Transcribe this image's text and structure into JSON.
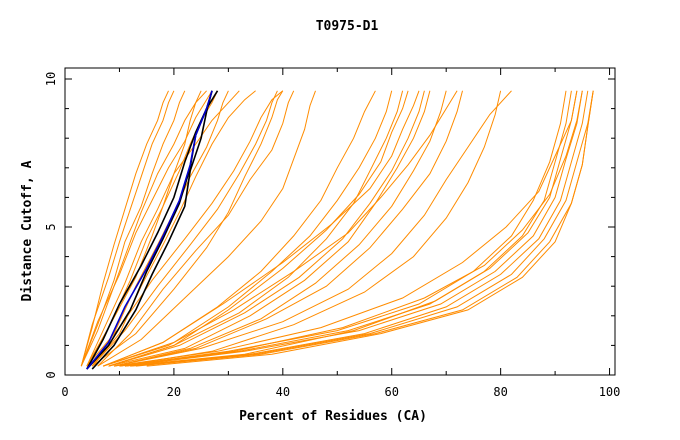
{
  "chart_data": {
    "type": "line",
    "title": "T0975-D1",
    "xlabel": "Percent of Residues (CA)",
    "ylabel": "Distance Cutoff, A",
    "xlim": [
      0,
      101
    ],
    "ylim": [
      0,
      10
    ],
    "x_ticks": [
      0,
      20,
      40,
      60,
      80,
      100
    ],
    "y_ticks": [
      0,
      5,
      10
    ],
    "grid": false,
    "colors": {
      "models": "#ff8c00",
      "highlight_black": "#000000",
      "highlight_blue": "#0000cc"
    },
    "series": [
      {
        "group": "models",
        "x": [
          3,
          6,
          9,
          12,
          14,
          17,
          20,
          22,
          24,
          26
        ],
        "y": [
          0.3,
          1.5,
          3,
          4.5,
          5.5,
          6.8,
          7.8,
          8.6,
          9.2,
          9.6
        ]
      },
      {
        "group": "models",
        "x": [
          4,
          8,
          12,
          15,
          18,
          21,
          23,
          25,
          27,
          28
        ],
        "y": [
          0.3,
          1.6,
          3.2,
          4.6,
          5.7,
          6.9,
          7.8,
          8.6,
          9.2,
          9.6
        ]
      },
      {
        "group": "models",
        "x": [
          3,
          5,
          8,
          10,
          12,
          14,
          16,
          18,
          19,
          20
        ],
        "y": [
          0.3,
          1.7,
          3.3,
          4.5,
          5.6,
          6.7,
          7.8,
          8.6,
          9.2,
          9.6
        ]
      },
      {
        "group": "models",
        "x": [
          5,
          9,
          13,
          17,
          20,
          23,
          26,
          28,
          29,
          30
        ],
        "y": [
          0.3,
          1.4,
          3,
          4.4,
          5.5,
          6.7,
          7.7,
          8.6,
          9.2,
          9.6
        ]
      },
      {
        "group": "models",
        "x": [
          3,
          6,
          10,
          13,
          16,
          19,
          22,
          24,
          26,
          27
        ],
        "y": [
          0.3,
          1.8,
          3.4,
          4.8,
          5.9,
          7,
          7.9,
          8.7,
          9.3,
          9.6
        ]
      },
      {
        "group": "models",
        "x": [
          4,
          7,
          11,
          14,
          17,
          20,
          24,
          27,
          30,
          32
        ],
        "y": [
          0.3,
          1.5,
          3.1,
          4.5,
          5.6,
          6.8,
          7.8,
          8.6,
          9.2,
          9.6
        ]
      },
      {
        "group": "models",
        "x": [
          3,
          5,
          7,
          9,
          11,
          13,
          15,
          17,
          18,
          19
        ],
        "y": [
          0.3,
          1.6,
          3.1,
          4.4,
          5.6,
          6.8,
          7.8,
          8.6,
          9.2,
          9.6
        ]
      },
      {
        "group": "models",
        "x": [
          5,
          10,
          14,
          18,
          21,
          24,
          27,
          30,
          33,
          35
        ],
        "y": [
          0.3,
          1.4,
          3,
          4.4,
          5.5,
          6.7,
          7.8,
          8.7,
          9.3,
          9.6
        ]
      },
      {
        "group": "models",
        "x": [
          4,
          8,
          13,
          16,
          18,
          20,
          22,
          23,
          24,
          25
        ],
        "y": [
          0.3,
          1.6,
          3.3,
          4.7,
          5.7,
          6.8,
          7.8,
          8.6,
          9.2,
          9.6
        ]
      },
      {
        "group": "models",
        "x": [
          3,
          6,
          9,
          11,
          14,
          16,
          18,
          20,
          21,
          22
        ],
        "y": [
          0.3,
          1.7,
          3.2,
          4.5,
          5.7,
          6.8,
          7.8,
          8.6,
          9.2,
          9.6
        ]
      },
      {
        "group": "models",
        "x": [
          6,
          12,
          18,
          24,
          30,
          34,
          38,
          40,
          41,
          42
        ],
        "y": [
          0.3,
          1.4,
          2.9,
          4.2,
          5.4,
          6.6,
          7.6,
          8.5,
          9.2,
          9.6
        ]
      },
      {
        "group": "models",
        "x": [
          5,
          11,
          17,
          23,
          28,
          32,
          35,
          37,
          38,
          39
        ],
        "y": [
          0.3,
          1.5,
          3,
          4.4,
          5.6,
          6.8,
          7.8,
          8.6,
          9.2,
          9.6
        ]
      },
      {
        "group": "models",
        "x": [
          4,
          10,
          16,
          22,
          27,
          31,
          34,
          36,
          38,
          40
        ],
        "y": [
          0.3,
          1.6,
          3.2,
          4.6,
          5.8,
          6.9,
          7.9,
          8.7,
          9.3,
          9.6
        ]
      },
      {
        "group": "models",
        "x": [
          5,
          13,
          20,
          26,
          30,
          33,
          36,
          38,
          39,
          40
        ],
        "y": [
          0.3,
          1.4,
          2.9,
          4.3,
          5.5,
          6.7,
          7.8,
          8.7,
          9.3,
          9.6
        ]
      },
      {
        "group": "models",
        "x": [
          6,
          14,
          22,
          30,
          36,
          40,
          42,
          44,
          45,
          46
        ],
        "y": [
          0.3,
          1.2,
          2.6,
          4,
          5.2,
          6.3,
          7.3,
          8.3,
          9.1,
          9.6
        ]
      },
      {
        "group": "models",
        "x": [
          7,
          18,
          28,
          36,
          42,
          47,
          50,
          53,
          55,
          57
        ],
        "y": [
          0.3,
          1.1,
          2.3,
          3.5,
          4.7,
          5.9,
          7,
          8,
          8.9,
          9.6
        ]
      },
      {
        "group": "models",
        "x": [
          7,
          20,
          30,
          38,
          45,
          50,
          54,
          57,
          59,
          60
        ],
        "y": [
          0.3,
          1.1,
          2.3,
          3.5,
          4.7,
          5.9,
          7,
          8,
          8.9,
          9.6
        ]
      },
      {
        "group": "models",
        "x": [
          8,
          20,
          32,
          41,
          48,
          53,
          56,
          59,
          61,
          62
        ],
        "y": [
          0.3,
          1,
          2.1,
          3.3,
          4.6,
          5.8,
          6.9,
          8,
          8.9,
          9.6
        ]
      },
      {
        "group": "models",
        "x": [
          8,
          21,
          33,
          43,
          51,
          56,
          60,
          63,
          65,
          66
        ],
        "y": [
          0.3,
          1,
          2.1,
          3.3,
          4.6,
          5.8,
          6.9,
          8,
          8.9,
          9.6
        ]
      },
      {
        "group": "models",
        "x": [
          8,
          22,
          34,
          44,
          52,
          57,
          61,
          64,
          66,
          67
        ],
        "y": [
          0.3,
          0.9,
          2,
          3.2,
          4.5,
          5.8,
          7,
          8,
          8.9,
          9.6
        ]
      },
      {
        "group": "models",
        "x": [
          9,
          23,
          36,
          46,
          54,
          60,
          64,
          67,
          69,
          70
        ],
        "y": [
          0.3,
          0.9,
          1.9,
          3.1,
          4.4,
          5.7,
          6.9,
          7.9,
          8.9,
          9.6
        ]
      },
      {
        "group": "models",
        "x": [
          9,
          24,
          37,
          48,
          56,
          62,
          67,
          70,
          72,
          73
        ],
        "y": [
          0.3,
          0.9,
          1.9,
          3,
          4.3,
          5.6,
          6.8,
          7.9,
          8.9,
          9.6
        ]
      },
      {
        "group": "models",
        "x": [
          8,
          20,
          30,
          40,
          48,
          54,
          58,
          60,
          62,
          63
        ],
        "y": [
          0.3,
          1,
          2.2,
          3.6,
          4.9,
          6.1,
          7.2,
          8.2,
          9,
          9.6
        ]
      },
      {
        "group": "models",
        "x": [
          7,
          18,
          29,
          40,
          49,
          56,
          60,
          62,
          64,
          65
        ],
        "y": [
          0.3,
          1.1,
          2.4,
          3.8,
          5.1,
          6.3,
          7.4,
          8.3,
          9.1,
          9.6
        ]
      },
      {
        "group": "models",
        "x": [
          7,
          19,
          31,
          42,
          52,
          58,
          63,
          67,
          70,
          72
        ],
        "y": [
          0.3,
          1,
          2.2,
          3.5,
          4.8,
          6,
          7.1,
          8.1,
          9,
          9.6
        ]
      },
      {
        "group": "models",
        "x": [
          9,
          25,
          40,
          52,
          60,
          66,
          70,
          74,
          78,
          82
        ],
        "y": [
          0.3,
          0.9,
          1.8,
          2.9,
          4.1,
          5.4,
          6.6,
          7.7,
          8.8,
          9.6
        ]
      },
      {
        "group": "models",
        "x": [
          10,
          27,
          42,
          55,
          64,
          70,
          74,
          77,
          79,
          80
        ],
        "y": [
          0.3,
          0.8,
          1.7,
          2.8,
          4,
          5.3,
          6.5,
          7.7,
          8.8,
          9.6
        ]
      },
      {
        "group": "models",
        "x": [
          10,
          30,
          50,
          65,
          75,
          82,
          86,
          89,
          91,
          92
        ],
        "y": [
          0.3,
          0.8,
          1.5,
          2.4,
          3.5,
          4.7,
          5.9,
          7.2,
          8.5,
          9.6
        ]
      },
      {
        "group": "models",
        "x": [
          11,
          32,
          52,
          67,
          77,
          84,
          88,
          90,
          92,
          93
        ],
        "y": [
          0.3,
          0.8,
          1.5,
          2.4,
          3.5,
          4.7,
          5.9,
          7.2,
          8.5,
          9.6
        ]
      },
      {
        "group": "models",
        "x": [
          11,
          33,
          54,
          69,
          79,
          86,
          90,
          92,
          94,
          95
        ],
        "y": [
          0.3,
          0.8,
          1.5,
          2.4,
          3.5,
          4.7,
          6,
          7.3,
          8.5,
          9.6
        ]
      },
      {
        "group": "models",
        "x": [
          12,
          34,
          55,
          70,
          80,
          87,
          91,
          93,
          95,
          96
        ],
        "y": [
          0.3,
          0.7,
          1.4,
          2.3,
          3.4,
          4.6,
          5.9,
          7.2,
          8.5,
          9.6
        ]
      },
      {
        "group": "models",
        "x": [
          12,
          35,
          56,
          72,
          82,
          88,
          92,
          94,
          96,
          97
        ],
        "y": [
          0.3,
          0.7,
          1.4,
          2.3,
          3.4,
          4.6,
          5.9,
          7.2,
          8.5,
          9.6
        ]
      },
      {
        "group": "models",
        "x": [
          10,
          31,
          51,
          66,
          77,
          84,
          89,
          92,
          94,
          95
        ],
        "y": [
          0.3,
          0.8,
          1.6,
          2.6,
          3.7,
          4.9,
          6.1,
          7.4,
          8.6,
          9.6
        ]
      },
      {
        "group": "models",
        "x": [
          11,
          33,
          53,
          68,
          78,
          85,
          89,
          91,
          93,
          94
        ],
        "y": [
          0.3,
          0.7,
          1.5,
          2.5,
          3.6,
          4.8,
          6,
          7.3,
          8.6,
          9.6
        ]
      },
      {
        "group": "models",
        "x": [
          13,
          36,
          57,
          73,
          83,
          89,
          93,
          95,
          96,
          97
        ],
        "y": [
          0.3,
          0.7,
          1.4,
          2.2,
          3.3,
          4.5,
          5.8,
          7.1,
          8.4,
          9.6
        ]
      },
      {
        "group": "models",
        "x": [
          15,
          38,
          58,
          74,
          84,
          90,
          93,
          95,
          96,
          97
        ],
        "y": [
          0.3,
          0.7,
          1.4,
          2.2,
          3.3,
          4.5,
          5.8,
          7.1,
          8.4,
          9.6
        ]
      },
      {
        "group": "models",
        "x": [
          9,
          28,
          47,
          62,
          73,
          81,
          87,
          90,
          93,
          94
        ],
        "y": [
          0.3,
          0.8,
          1.6,
          2.6,
          3.8,
          5,
          6.2,
          7.4,
          8.6,
          9.6
        ]
      },
      {
        "group": "highlight_black",
        "x": [
          4,
          7,
          10,
          14,
          17,
          20,
          22,
          24,
          26,
          27
        ],
        "y": [
          0.2,
          1.2,
          2.4,
          3.7,
          4.8,
          6,
          7.2,
          8.2,
          9,
          9.6
        ]
      },
      {
        "group": "highlight_black",
        "x": [
          4,
          8,
          12,
          15,
          18,
          21,
          23,
          24,
          26,
          28
        ],
        "y": [
          0.2,
          1,
          2.2,
          3.5,
          4.6,
          5.8,
          7,
          8.1,
          9,
          9.6
        ]
      },
      {
        "group": "highlight_black",
        "x": [
          5,
          9,
          13,
          16,
          19,
          22,
          23,
          25,
          26,
          27
        ],
        "y": [
          0.2,
          1,
          2.2,
          3.4,
          4.5,
          5.7,
          6.9,
          8,
          8.9,
          9.6
        ]
      },
      {
        "group": "highlight_blue",
        "x": [
          4,
          8,
          11,
          15,
          18,
          21,
          23,
          24,
          26,
          27
        ],
        "y": [
          0.2,
          1.1,
          2.3,
          3.6,
          4.7,
          5.9,
          7.1,
          8.1,
          9,
          9.6
        ]
      }
    ]
  }
}
